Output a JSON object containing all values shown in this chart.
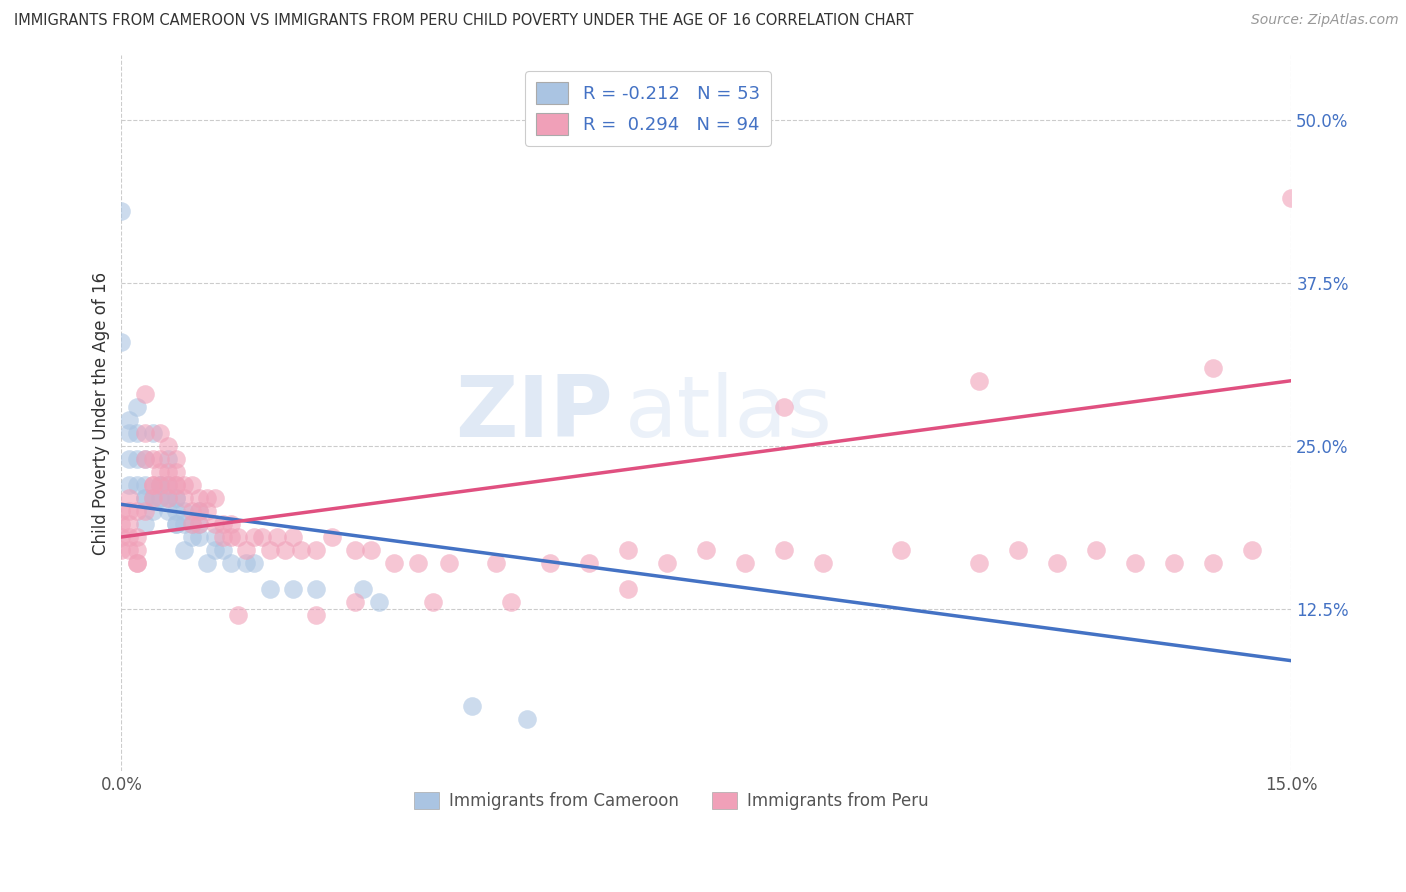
{
  "title": "IMMIGRANTS FROM CAMEROON VS IMMIGRANTS FROM PERU CHILD POVERTY UNDER THE AGE OF 16 CORRELATION CHART",
  "source": "Source: ZipAtlas.com",
  "ylabel": "Child Poverty Under the Age of 16",
  "xlim": [
    0.0,
    0.15
  ],
  "ylim": [
    0.0,
    0.55
  ],
  "x_tick_labels": [
    "0.0%",
    "15.0%"
  ],
  "y_tick_positions": [
    0.0,
    0.125,
    0.25,
    0.375,
    0.5
  ],
  "y_tick_labels": [
    "",
    "12.5%",
    "25.0%",
    "37.5%",
    "50.0%"
  ],
  "color_blue": "#aac4e2",
  "color_pink": "#f0a0b8",
  "line_blue": "#4472c4",
  "line_pink": "#e05080",
  "blue_line_x0": 0.0,
  "blue_line_y0": 0.205,
  "blue_line_x1": 0.15,
  "blue_line_y1": 0.085,
  "pink_line_x0": 0.0,
  "pink_line_y0": 0.18,
  "pink_line_x1": 0.15,
  "pink_line_y1": 0.3,
  "watermark_text": "ZIPatlas",
  "cam_x": [
    0.0,
    0.0,
    0.001,
    0.001,
    0.001,
    0.001,
    0.002,
    0.002,
    0.002,
    0.002,
    0.003,
    0.003,
    0.003,
    0.003,
    0.003,
    0.004,
    0.004,
    0.004,
    0.005,
    0.005,
    0.005,
    0.005,
    0.006,
    0.006,
    0.006,
    0.006,
    0.007,
    0.007,
    0.007,
    0.007,
    0.007,
    0.008,
    0.008,
    0.008,
    0.009,
    0.009,
    0.01,
    0.01,
    0.01,
    0.011,
    0.012,
    0.012,
    0.013,
    0.014,
    0.016,
    0.017,
    0.019,
    0.022,
    0.025,
    0.031,
    0.033,
    0.045,
    0.052
  ],
  "cam_y": [
    0.43,
    0.33,
    0.24,
    0.22,
    0.26,
    0.27,
    0.24,
    0.26,
    0.28,
    0.22,
    0.21,
    0.22,
    0.24,
    0.19,
    0.21,
    0.26,
    0.21,
    0.2,
    0.22,
    0.21,
    0.22,
    0.21,
    0.21,
    0.22,
    0.2,
    0.24,
    0.19,
    0.21,
    0.2,
    0.19,
    0.21,
    0.17,
    0.2,
    0.19,
    0.18,
    0.19,
    0.18,
    0.19,
    0.2,
    0.16,
    0.17,
    0.18,
    0.17,
    0.16,
    0.16,
    0.16,
    0.14,
    0.14,
    0.14,
    0.14,
    0.13,
    0.05,
    0.04
  ],
  "peru_x": [
    0.0,
    0.0,
    0.0,
    0.0,
    0.001,
    0.001,
    0.001,
    0.001,
    0.001,
    0.002,
    0.002,
    0.002,
    0.002,
    0.002,
    0.003,
    0.003,
    0.003,
    0.003,
    0.004,
    0.004,
    0.004,
    0.004,
    0.005,
    0.005,
    0.005,
    0.005,
    0.006,
    0.006,
    0.006,
    0.006,
    0.007,
    0.007,
    0.007,
    0.007,
    0.008,
    0.008,
    0.009,
    0.009,
    0.009,
    0.01,
    0.01,
    0.01,
    0.011,
    0.011,
    0.012,
    0.012,
    0.013,
    0.013,
    0.014,
    0.014,
    0.015,
    0.016,
    0.017,
    0.018,
    0.019,
    0.02,
    0.021,
    0.022,
    0.023,
    0.025,
    0.027,
    0.03,
    0.032,
    0.035,
    0.038,
    0.042,
    0.048,
    0.055,
    0.06,
    0.065,
    0.07,
    0.075,
    0.08,
    0.085,
    0.09,
    0.1,
    0.11,
    0.115,
    0.12,
    0.125,
    0.13,
    0.135,
    0.14,
    0.145,
    0.15,
    0.14,
    0.11,
    0.085,
    0.065,
    0.05,
    0.04,
    0.03,
    0.025,
    0.015
  ],
  "peru_y": [
    0.17,
    0.19,
    0.18,
    0.2,
    0.18,
    0.19,
    0.2,
    0.17,
    0.21,
    0.16,
    0.17,
    0.18,
    0.16,
    0.2,
    0.24,
    0.26,
    0.29,
    0.2,
    0.22,
    0.21,
    0.24,
    0.22,
    0.23,
    0.22,
    0.24,
    0.26,
    0.22,
    0.23,
    0.25,
    0.21,
    0.24,
    0.22,
    0.23,
    0.22,
    0.22,
    0.21,
    0.2,
    0.22,
    0.19,
    0.2,
    0.21,
    0.19,
    0.21,
    0.2,
    0.21,
    0.19,
    0.19,
    0.18,
    0.19,
    0.18,
    0.18,
    0.17,
    0.18,
    0.18,
    0.17,
    0.18,
    0.17,
    0.18,
    0.17,
    0.17,
    0.18,
    0.17,
    0.17,
    0.16,
    0.16,
    0.16,
    0.16,
    0.16,
    0.16,
    0.17,
    0.16,
    0.17,
    0.16,
    0.17,
    0.16,
    0.17,
    0.16,
    0.17,
    0.16,
    0.17,
    0.16,
    0.16,
    0.16,
    0.17,
    0.44,
    0.31,
    0.3,
    0.28,
    0.14,
    0.13,
    0.13,
    0.13,
    0.12,
    0.12
  ]
}
